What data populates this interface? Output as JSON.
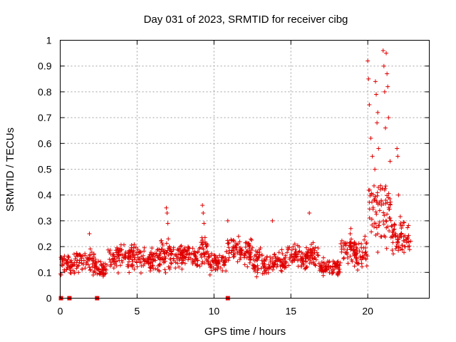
{
  "chart_data": {
    "type": "scatter",
    "title": "Day 031 of 2023, SRMTID for receiver cibg",
    "xlabel": "GPS time / hours",
    "ylabel": "SRMTID / TECUs",
    "xlim": [
      0,
      24
    ],
    "ylim": [
      0,
      1
    ],
    "xticks": [
      0,
      5,
      10,
      15,
      20
    ],
    "yticks": [
      0,
      0.1,
      0.2,
      0.3,
      0.4,
      0.5,
      0.6,
      0.7,
      0.8,
      0.9,
      1
    ],
    "grid": true,
    "marker": "+",
    "color": "#e00000",
    "zero_markers_x": [
      0.05,
      0.6,
      2.4,
      10.9
    ],
    "segments": [
      {
        "x0": 0.0,
        "x1": 1.0,
        "base": 0.13,
        "spread": 0.06
      },
      {
        "x0": 1.0,
        "x1": 2.3,
        "base": 0.14,
        "spread": 0.07
      },
      {
        "x0": 2.3,
        "x1": 3.0,
        "base": 0.11,
        "spread": 0.05
      },
      {
        "x0": 3.0,
        "x1": 4.8,
        "base": 0.16,
        "spread": 0.07
      },
      {
        "x0": 4.8,
        "x1": 6.5,
        "base": 0.15,
        "spread": 0.07
      },
      {
        "x0": 6.5,
        "x1": 7.2,
        "base": 0.17,
        "spread": 0.09
      },
      {
        "x0": 7.2,
        "x1": 9.0,
        "base": 0.16,
        "spread": 0.07
      },
      {
        "x0": 9.0,
        "x1": 9.6,
        "base": 0.19,
        "spread": 0.08
      },
      {
        "x0": 9.6,
        "x1": 10.8,
        "base": 0.14,
        "spread": 0.06
      },
      {
        "x0": 10.8,
        "x1": 12.5,
        "base": 0.18,
        "spread": 0.07
      },
      {
        "x0": 12.5,
        "x1": 14.7,
        "base": 0.14,
        "spread": 0.07
      },
      {
        "x0": 14.7,
        "x1": 16.8,
        "base": 0.16,
        "spread": 0.07
      },
      {
        "x0": 16.8,
        "x1": 18.2,
        "base": 0.12,
        "spread": 0.05
      },
      {
        "x0": 18.2,
        "x1": 19.2,
        "base": 0.19,
        "spread": 0.08
      },
      {
        "x0": 19.2,
        "x1": 20.0,
        "base": 0.17,
        "spread": 0.1
      },
      {
        "x0": 20.0,
        "x1": 21.5,
        "base": 0.35,
        "spread": 0.22
      },
      {
        "x0": 21.5,
        "x1": 22.8,
        "base": 0.24,
        "spread": 0.1
      }
    ],
    "highlights": [
      {
        "x": 6.9,
        "y": 0.35
      },
      {
        "x": 6.95,
        "y": 0.33
      },
      {
        "x": 7.0,
        "y": 0.29
      },
      {
        "x": 9.25,
        "y": 0.36
      },
      {
        "x": 9.3,
        "y": 0.33
      },
      {
        "x": 9.35,
        "y": 0.29
      },
      {
        "x": 10.9,
        "y": 0.3
      },
      {
        "x": 13.8,
        "y": 0.3
      },
      {
        "x": 16.2,
        "y": 0.33
      },
      {
        "x": 1.9,
        "y": 0.25
      },
      {
        "x": 18.9,
        "y": 0.27
      },
      {
        "x": 20.0,
        "y": 0.92
      },
      {
        "x": 20.05,
        "y": 0.85
      },
      {
        "x": 20.1,
        "y": 0.75
      },
      {
        "x": 20.2,
        "y": 0.62
      },
      {
        "x": 20.3,
        "y": 0.55
      },
      {
        "x": 20.5,
        "y": 0.84
      },
      {
        "x": 20.55,
        "y": 0.79
      },
      {
        "x": 20.6,
        "y": 0.68
      },
      {
        "x": 20.65,
        "y": 0.72
      },
      {
        "x": 20.7,
        "y": 0.58
      },
      {
        "x": 21.0,
        "y": 0.96
      },
      {
        "x": 21.05,
        "y": 0.9
      },
      {
        "x": 21.1,
        "y": 0.8
      },
      {
        "x": 21.2,
        "y": 0.95
      },
      {
        "x": 21.25,
        "y": 0.87
      },
      {
        "x": 21.3,
        "y": 0.82
      },
      {
        "x": 21.35,
        "y": 0.7
      },
      {
        "x": 21.15,
        "y": 0.66
      },
      {
        "x": 21.9,
        "y": 0.58
      },
      {
        "x": 21.95,
        "y": 0.55
      },
      {
        "x": 22.0,
        "y": 0.4
      }
    ]
  }
}
